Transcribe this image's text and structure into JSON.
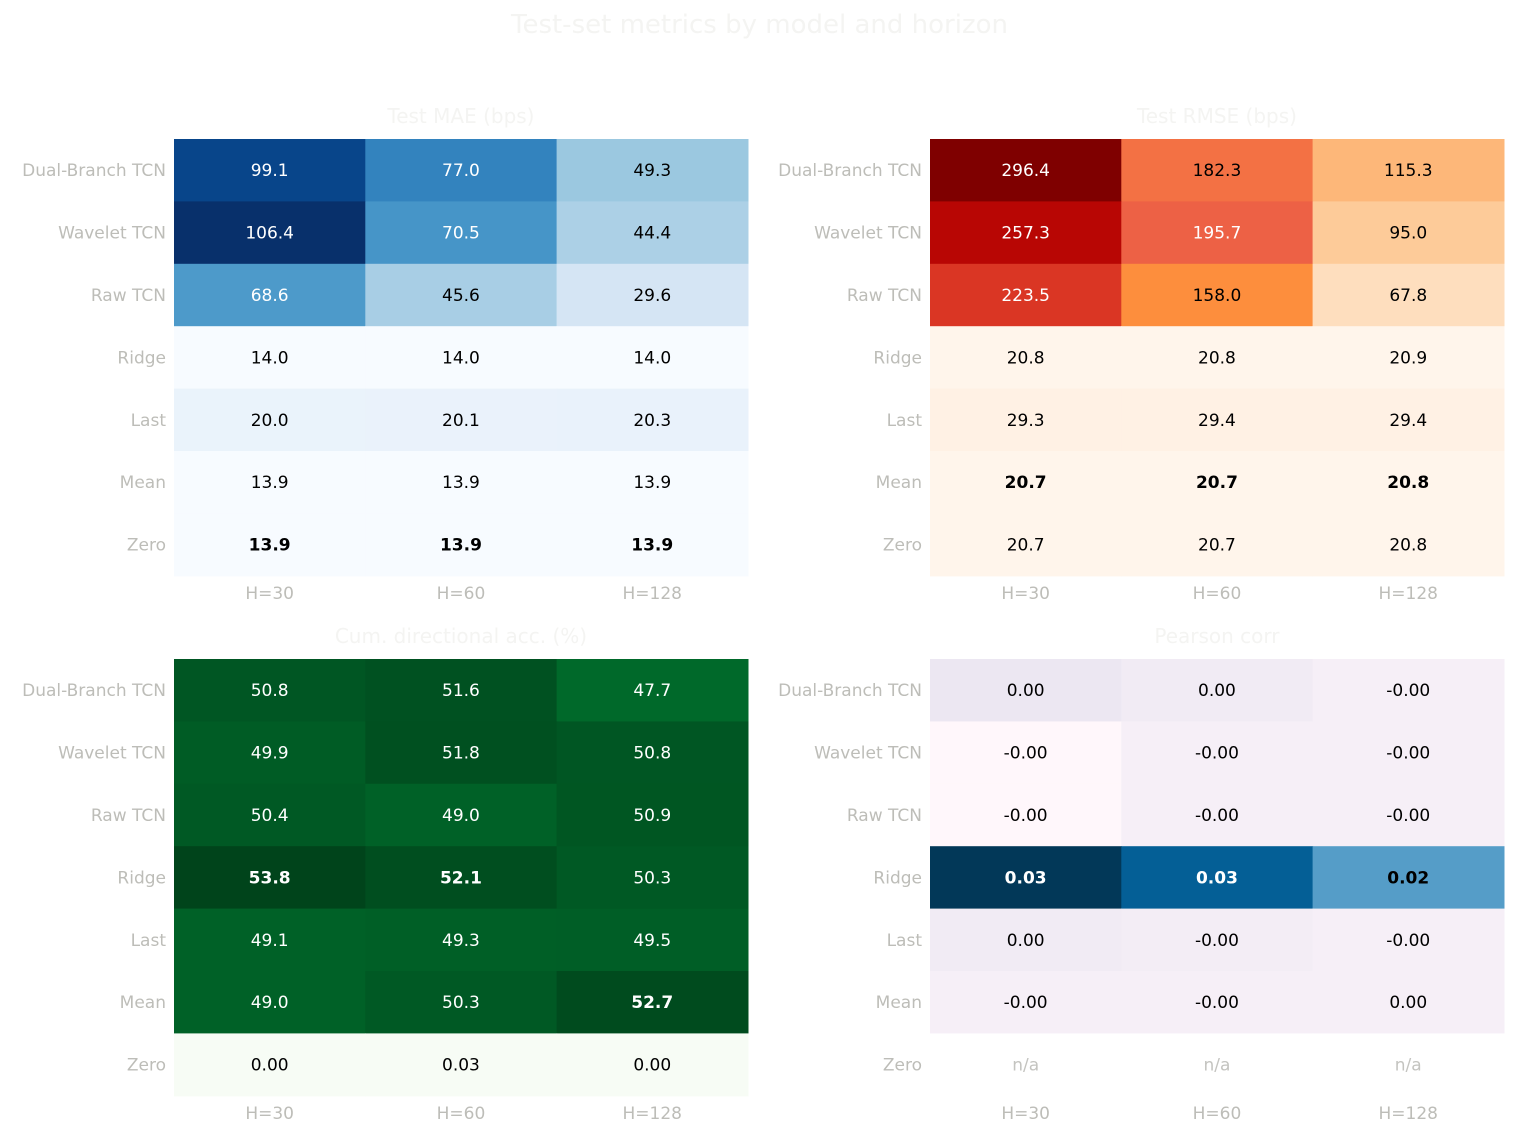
{
  "figure": {
    "title": "Test-set metrics by model and horizon"
  },
  "chart_data": [
    {
      "type": "heatmap",
      "title": "Test MAE (bps)",
      "colormap": "Blues",
      "rows": [
        "Dual-Branch TCN",
        "Wavelet TCN",
        "Raw TCN",
        "Ridge",
        "Last",
        "Mean",
        "Zero"
      ],
      "columns": [
        "H=30",
        "H=60",
        "H=128"
      ],
      "values": [
        [
          99.1,
          77.0,
          49.3
        ],
        [
          106.4,
          70.5,
          44.4
        ],
        [
          68.6,
          45.6,
          29.6
        ],
        [
          14.0,
          14.0,
          14.0
        ],
        [
          20.0,
          20.1,
          20.3
        ],
        [
          13.9,
          13.9,
          13.9
        ],
        [
          13.9,
          13.9,
          13.9
        ]
      ],
      "labels": [
        [
          "99.1",
          "77.0",
          "49.3"
        ],
        [
          "106.4",
          "70.5",
          "44.4"
        ],
        [
          "68.6",
          "45.6",
          "29.6"
        ],
        [
          "14.0",
          "14.0",
          "14.0"
        ],
        [
          "20.0",
          "20.1",
          "20.3"
        ],
        [
          "13.9",
          "13.9",
          "13.9"
        ],
        [
          "13.9",
          "13.9",
          "13.9"
        ]
      ],
      "bold": [
        [
          false,
          false,
          false
        ],
        [
          false,
          false,
          false
        ],
        [
          false,
          false,
          false
        ],
        [
          false,
          false,
          false
        ],
        [
          false,
          false,
          false
        ],
        [
          false,
          false,
          false
        ],
        [
          true,
          true,
          true
        ]
      ],
      "vrange": [
        13.9,
        106.4
      ]
    },
    {
      "type": "heatmap",
      "title": "Test RMSE (bps)",
      "colormap": "Oranges-Reds",
      "rows": [
        "Dual-Branch TCN",
        "Wavelet TCN",
        "Raw TCN",
        "Ridge",
        "Last",
        "Mean",
        "Zero"
      ],
      "columns": [
        "H=30",
        "H=60",
        "H=128"
      ],
      "values": [
        [
          296.4,
          182.3,
          115.3
        ],
        [
          257.3,
          195.7,
          95.0
        ],
        [
          223.5,
          158.0,
          67.8
        ],
        [
          20.8,
          20.8,
          20.9
        ],
        [
          29.3,
          29.4,
          29.4
        ],
        [
          20.7,
          20.7,
          20.8
        ],
        [
          20.7,
          20.7,
          20.8
        ]
      ],
      "labels": [
        [
          "296.4",
          "182.3",
          "115.3"
        ],
        [
          "257.3",
          "195.7",
          "95.0"
        ],
        [
          "223.5",
          "158.0",
          "67.8"
        ],
        [
          "20.8",
          "20.8",
          "20.9"
        ],
        [
          "29.3",
          "29.4",
          "29.4"
        ],
        [
          "20.7",
          "20.7",
          "20.8"
        ],
        [
          "20.7",
          "20.7",
          "20.8"
        ]
      ],
      "bold": [
        [
          false,
          false,
          false
        ],
        [
          false,
          false,
          false
        ],
        [
          false,
          false,
          false
        ],
        [
          false,
          false,
          false
        ],
        [
          false,
          false,
          false
        ],
        [
          true,
          true,
          true
        ],
        [
          false,
          false,
          false
        ]
      ],
      "vrange": [
        20.7,
        296.4
      ]
    },
    {
      "type": "heatmap",
      "title": "Cum. directional acc. (%)",
      "colormap": "Greens",
      "rows": [
        "Dual-Branch TCN",
        "Wavelet TCN",
        "Raw TCN",
        "Ridge",
        "Last",
        "Mean",
        "Zero"
      ],
      "columns": [
        "H=30",
        "H=60",
        "H=128"
      ],
      "values": [
        [
          50.8,
          51.6,
          47.7
        ],
        [
          49.9,
          51.8,
          50.8
        ],
        [
          50.4,
          49.0,
          50.9
        ],
        [
          53.8,
          52.1,
          50.3
        ],
        [
          49.1,
          49.3,
          49.5
        ],
        [
          49.0,
          50.3,
          52.7
        ],
        [
          0.0,
          0.03,
          0.0
        ]
      ],
      "labels": [
        [
          "50.8",
          "51.6",
          "47.7"
        ],
        [
          "49.9",
          "51.8",
          "50.8"
        ],
        [
          "50.4",
          "49.0",
          "50.9"
        ],
        [
          "53.8",
          "52.1",
          "50.3"
        ],
        [
          "49.1",
          "49.3",
          "49.5"
        ],
        [
          "49.0",
          "50.3",
          "52.7"
        ],
        [
          "0.00",
          "0.03",
          "0.00"
        ]
      ],
      "bold": [
        [
          false,
          false,
          false
        ],
        [
          false,
          false,
          false
        ],
        [
          false,
          false,
          false
        ],
        [
          true,
          true,
          false
        ],
        [
          false,
          false,
          false
        ],
        [
          false,
          false,
          true
        ],
        [
          false,
          false,
          false
        ]
      ],
      "vrange": [
        0,
        53.8
      ]
    },
    {
      "type": "heatmap",
      "title": "Pearson corr",
      "colormap": "PuBu",
      "rows": [
        "Dual-Branch TCN",
        "Wavelet TCN",
        "Raw TCN",
        "Ridge",
        "Last",
        "Mean",
        "Zero"
      ],
      "columns": [
        "H=30",
        "H=60",
        "H=128"
      ],
      "values": [
        [
          0.002,
          0.001,
          0.0
        ],
        [
          -0.002,
          0.0,
          0.0
        ],
        [
          -0.002,
          0.0,
          0.0
        ],
        [
          0.03,
          0.025,
          0.016
        ],
        [
          0.001,
          0.0005,
          0.0
        ],
        [
          0.0,
          0.0,
          0.0
        ],
        [
          null,
          null,
          null
        ]
      ],
      "labels": [
        [
          "0.00",
          "0.00",
          "-0.00"
        ],
        [
          "-0.00",
          "-0.00",
          "-0.00"
        ],
        [
          "-0.00",
          "-0.00",
          "-0.00"
        ],
        [
          "0.03",
          "0.03",
          "0.02"
        ],
        [
          "0.00",
          "-0.00",
          "-0.00"
        ],
        [
          "-0.00",
          "-0.00",
          "0.00"
        ],
        [
          "n/a",
          "n/a",
          "n/a"
        ]
      ],
      "bold": [
        [
          false,
          false,
          false
        ],
        [
          false,
          false,
          false
        ],
        [
          false,
          false,
          false
        ],
        [
          true,
          true,
          true
        ],
        [
          false,
          false,
          false
        ],
        [
          false,
          false,
          false
        ],
        [
          false,
          false,
          false
        ]
      ],
      "vrange": [
        -0.002,
        0.03
      ]
    }
  ]
}
